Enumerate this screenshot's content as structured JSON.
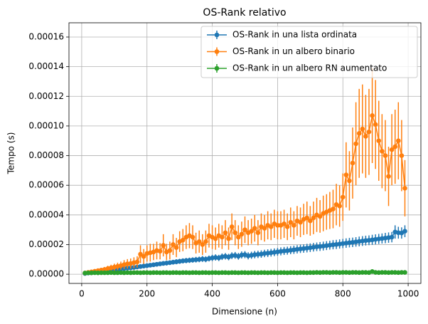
{
  "chart_data": {
    "type": "errorbar",
    "title": "OS-Rank relativo",
    "xlabel": "Dimensione (n)",
    "ylabel": "Tempo (s)",
    "xlim": [
      -39,
      1039
    ],
    "ylim": [
      -6.2e-06,
      0.0001696
    ],
    "xticks": [
      0,
      200,
      400,
      600,
      800,
      1000
    ],
    "yticks": [
      {
        "value": 0,
        "label": "0.00000"
      },
      {
        "value": 2e-05,
        "label": "0.00002"
      },
      {
        "value": 4e-05,
        "label": "0.00004"
      },
      {
        "value": 6e-05,
        "label": "0.00006"
      },
      {
        "value": 8e-05,
        "label": "0.00008"
      },
      {
        "value": 0.0001,
        "label": "0.00010"
      },
      {
        "value": 0.00012,
        "label": "0.00012"
      },
      {
        "value": 0.00014,
        "label": "0.00014"
      },
      {
        "value": 0.00016,
        "label": "0.00016"
      }
    ],
    "grid": true,
    "legend": "upper right",
    "x": [
      10,
      20,
      30,
      40,
      50,
      60,
      70,
      80,
      90,
      100,
      110,
      120,
      130,
      140,
      150,
      160,
      170,
      180,
      190,
      200,
      210,
      220,
      230,
      240,
      250,
      260,
      270,
      280,
      290,
      300,
      310,
      320,
      330,
      340,
      350,
      360,
      370,
      380,
      390,
      400,
      410,
      420,
      430,
      440,
      450,
      460,
      470,
      480,
      490,
      500,
      510,
      520,
      530,
      540,
      550,
      560,
      570,
      580,
      590,
      600,
      610,
      620,
      630,
      640,
      650,
      660,
      670,
      680,
      690,
      700,
      710,
      720,
      730,
      740,
      750,
      760,
      770,
      780,
      790,
      800,
      810,
      820,
      830,
      840,
      850,
      860,
      870,
      880,
      890,
      900,
      910,
      920,
      930,
      940,
      950,
      960,
      970,
      980,
      990
    ],
    "series": [
      {
        "name": "OS-Rank in una lista ordinata",
        "color": "#1f77b4",
        "values": [
          5e-07,
          8e-07,
          1e-06,
          1.3e-06,
          1.5e-06,
          1.8e-06,
          2e-06,
          2.3e-06,
          2.6e-06,
          2.9e-06,
          3.2e-06,
          3.5e-06,
          3.8e-06,
          4.1e-06,
          4.3e-06,
          4.6e-06,
          4.9e-06,
          5.2e-06,
          5.5e-06,
          5.8e-06,
          6.1e-06,
          6.4e-06,
          6.7e-06,
          7e-06,
          7.3e-06,
          7.5e-06,
          7.8e-06,
          8.1e-06,
          8.4e-06,
          8.7e-06,
          9e-06,
          9.2e-06,
          9.4e-06,
          9.6e-06,
          9.8e-06,
          1e-05,
          1.03e-05,
          1.01e-05,
          1.06e-05,
          1.1e-05,
          1.13e-05,
          1.1e-05,
          1.18e-05,
          1.21e-05,
          1.16e-05,
          1.25e-05,
          1.27e-05,
          1.21e-05,
          1.3e-05,
          1.32e-05,
          1.24e-05,
          1.28e-05,
          1.32e-05,
          1.34e-05,
          1.36e-05,
          1.4e-05,
          1.42e-05,
          1.45e-05,
          1.48e-05,
          1.51e-05,
          1.54e-05,
          1.57e-05,
          1.59e-05,
          1.62e-05,
          1.65e-05,
          1.68e-05,
          1.71e-05,
          1.73e-05,
          1.76e-05,
          1.79e-05,
          1.82e-05,
          1.85e-05,
          1.87e-05,
          1.9e-05,
          1.93e-05,
          1.96e-05,
          1.99e-05,
          2.01e-05,
          2.04e-05,
          2.07e-05,
          2.1e-05,
          2.13e-05,
          2.15e-05,
          2.18e-05,
          2.21e-05,
          2.24e-05,
          2.27e-05,
          2.29e-05,
          2.32e-05,
          2.35e-05,
          2.38e-05,
          2.41e-05,
          2.44e-05,
          2.47e-05,
          2.5e-05,
          2.85e-05,
          2.8e-05,
          2.78e-05,
          2.9e-05
        ],
        "errors": [
          3e-07,
          4e-07,
          5e-07,
          5e-07,
          6e-07,
          6e-07,
          7e-07,
          7e-07,
          8e-07,
          8e-07,
          9e-07,
          9e-07,
          1e-06,
          1e-06,
          1.1e-06,
          1.1e-06,
          1.2e-06,
          1.2e-06,
          1.3e-06,
          1.3e-06,
          1.4e-06,
          1.4e-06,
          1.5e-06,
          1.5e-06,
          1.5e-06,
          1.6e-06,
          1.6e-06,
          1.6e-06,
          1.7e-06,
          1.7e-06,
          1.7e-06,
          1.8e-06,
          1.8e-06,
          1.8e-06,
          1.9e-06,
          1.9e-06,
          2e-06,
          2e-06,
          2e-06,
          2.1e-06,
          2.1e-06,
          2.1e-06,
          2.2e-06,
          2.2e-06,
          2.2e-06,
          2.3e-06,
          2.3e-06,
          2.3e-06,
          2.4e-06,
          2.4e-06,
          2.4e-06,
          2.4e-06,
          2.5e-06,
          2.5e-06,
          2.5e-06,
          2.5e-06,
          2.6e-06,
          2.6e-06,
          2.6e-06,
          2.6e-06,
          2.7e-06,
          2.7e-06,
          2.7e-06,
          2.7e-06,
          2.8e-06,
          2.8e-06,
          2.8e-06,
          2.8e-06,
          2.9e-06,
          2.9e-06,
          2.9e-06,
          2.9e-06,
          3e-06,
          3e-06,
          3e-06,
          3e-06,
          3.1e-06,
          3.1e-06,
          3.1e-06,
          3.1e-06,
          3.2e-06,
          3.2e-06,
          3.2e-06,
          3.2e-06,
          3.3e-06,
          3.3e-06,
          3.3e-06,
          3.3e-06,
          3.4e-06,
          3.4e-06,
          3.4e-06,
          3.4e-06,
          3.5e-06,
          3.5e-06,
          3.5e-06,
          4.5e-06,
          4e-06,
          3.8e-06,
          4e-06
        ]
      },
      {
        "name": "OS-Rank in un albero binario",
        "color": "#ff7f0e",
        "values": [
          8e-07,
          1.2e-06,
          1.6e-06,
          2e-06,
          2.4e-06,
          2.8e-06,
          3.2e-06,
          3.8e-06,
          4.3e-06,
          4.8e-06,
          5.3e-06,
          5.8e-06,
          6.5e-06,
          7e-06,
          7.2e-06,
          7.8e-06,
          8.3e-06,
          1.35e-05,
          1.2e-05,
          1.4e-05,
          1.45e-05,
          1.5e-05,
          1.6e-05,
          1.55e-05,
          1.95e-05,
          1.5e-05,
          1.6e-05,
          2e-05,
          1.8e-05,
          2.2e-05,
          2.3e-05,
          2.5e-05,
          2.6e-05,
          2.5e-05,
          2.1e-05,
          2.2e-05,
          2e-05,
          2.2e-05,
          2.6e-05,
          2.5e-05,
          2.4e-05,
          2.6e-05,
          2.5e-05,
          2.8e-05,
          2.4e-05,
          3.2e-05,
          2.8e-05,
          2.5e-05,
          2.7e-05,
          3e-05,
          2.8e-05,
          2.9e-05,
          3.1e-05,
          2.8e-05,
          3.2e-05,
          3.1e-05,
          3.3e-05,
          3.2e-05,
          3.4e-05,
          3.3e-05,
          3.3e-05,
          3.4e-05,
          3.2e-05,
          3.5e-05,
          3.3e-05,
          3.6e-05,
          3.5e-05,
          3.7e-05,
          3.8e-05,
          3.6e-05,
          3.8e-05,
          4e-05,
          3.9e-05,
          4.1e-05,
          4.2e-05,
          4.3e-05,
          4.4e-05,
          4.7e-05,
          4.6e-05,
          5.2e-05,
          6.7e-05,
          6.3e-05,
          7.5e-05,
          8.8e-05,
          9.5e-05,
          9.8e-05,
          9.3e-05,
          9.6e-05,
          0.000107,
          0.000101,
          9e-05,
          8.3e-05,
          8e-05,
          6.6e-05,
          8.4e-05,
          8.6e-05,
          9e-05,
          8e-05,
          5.8e-05
        ],
        "errors": [
          5e-07,
          7e-07,
          9e-07,
          1.1e-06,
          1.3e-06,
          1.5e-06,
          1.7e-06,
          1.9e-06,
          2.1e-06,
          2.3e-06,
          2.5e-06,
          2.7e-06,
          3e-06,
          3.2e-06,
          3.4e-06,
          3.6e-06,
          3.8e-06,
          6e-06,
          5e-06,
          5.5e-06,
          6e-06,
          5.5e-06,
          6e-06,
          5.5e-06,
          7.5e-06,
          5.5e-06,
          6e-06,
          7e-06,
          6.5e-06,
          7e-06,
          7.5e-06,
          8e-06,
          8.5e-06,
          8e-06,
          7e-06,
          7.5e-06,
          7e-06,
          7.5e-06,
          8e-06,
          8e-06,
          7.5e-06,
          8e-06,
          8e-06,
          8.5e-06,
          7.5e-06,
          9e-06,
          8.5e-06,
          8e-06,
          8.5e-06,
          9e-06,
          8.5e-06,
          8.5e-06,
          9e-06,
          8.5e-06,
          9e-06,
          9e-06,
          9.5e-06,
          9e-06,
          9.5e-06,
          9.5e-06,
          9.5e-06,
          9.5e-06,
          9e-06,
          1e-05,
          9.5e-06,
          1e-05,
          1e-05,
          1.05e-05,
          1.1e-05,
          1e-05,
          1.1e-05,
          1.15e-05,
          1.1e-05,
          1.2e-05,
          1.2e-05,
          1.25e-05,
          1.3e-05,
          1.4e-05,
          1.4e-05,
          1.6e-05,
          2.2e-05,
          2e-05,
          2.4e-05,
          2.8e-05,
          3e-05,
          3e-05,
          2.8e-05,
          2.9e-05,
          3.2e-05,
          3e-05,
          2.7e-05,
          2.5e-05,
          2.4e-05,
          2e-05,
          2.4e-05,
          2.5e-05,
          2.6e-05,
          2.4e-05,
          1.9e-05
        ]
      },
      {
        "name": "OS-Rank in un albero RN aumentato",
        "color": "#2ca02c",
        "values": [
          8e-07,
          9e-07,
          9e-07,
          1e-06,
          9e-07,
          1e-06,
          1e-06,
          1e-06,
          1.1e-06,
          1e-06,
          1e-06,
          1.1e-06,
          1e-06,
          1.1e-06,
          1e-06,
          1.1e-06,
          1.1e-06,
          1e-06,
          1.1e-06,
          1.1e-06,
          1e-06,
          1.1e-06,
          1.1e-06,
          1e-06,
          1.1e-06,
          1.1e-06,
          1e-06,
          1.1e-06,
          1.1e-06,
          1e-06,
          1.1e-06,
          1.1e-06,
          1e-06,
          1.1e-06,
          1.1e-06,
          1e-06,
          1.1e-06,
          1.1e-06,
          1e-06,
          1.1e-06,
          1.1e-06,
          1e-06,
          1.1e-06,
          1.1e-06,
          1e-06,
          1.1e-06,
          1.1e-06,
          1e-06,
          1.1e-06,
          1.1e-06,
          1e-06,
          1.1e-06,
          1.1e-06,
          1e-06,
          1.1e-06,
          1.1e-06,
          1e-06,
          1.1e-06,
          1.1e-06,
          1e-06,
          1.1e-06,
          1.1e-06,
          1e-06,
          1.1e-06,
          1.1e-06,
          1e-06,
          1.1e-06,
          1.1e-06,
          1e-06,
          1.1e-06,
          1.1e-06,
          1.2e-06,
          1.1e-06,
          1.2e-06,
          1.2e-06,
          1.1e-06,
          1.2e-06,
          1.2e-06,
          1.1e-06,
          1.2e-06,
          1.2e-06,
          1.1e-06,
          1.2e-06,
          1.2e-06,
          1.1e-06,
          1.2e-06,
          1.2e-06,
          1.1e-06,
          1.8e-06,
          1.2e-06,
          1.1e-06,
          1.2e-06,
          1.2e-06,
          1.1e-06,
          1.2e-06,
          1.2e-06,
          1.1e-06,
          1.2e-06,
          1.2e-06
        ],
        "errors": [
          2e-07,
          2e-07,
          2e-07,
          2e-07,
          2e-07,
          2e-07,
          2e-07,
          2e-07,
          2e-07,
          2e-07,
          2e-07,
          2e-07,
          2e-07,
          2e-07,
          2e-07,
          2e-07,
          2e-07,
          2e-07,
          2e-07,
          2e-07,
          2e-07,
          2e-07,
          2e-07,
          2e-07,
          2e-07,
          2e-07,
          2e-07,
          2e-07,
          2e-07,
          2e-07,
          2e-07,
          2e-07,
          2e-07,
          2e-07,
          2e-07,
          2e-07,
          2e-07,
          2e-07,
          2e-07,
          2e-07,
          2e-07,
          2e-07,
          2e-07,
          2e-07,
          2e-07,
          2e-07,
          2e-07,
          2e-07,
          2e-07,
          2e-07,
          2e-07,
          2e-07,
          2e-07,
          2e-07,
          2e-07,
          2e-07,
          2e-07,
          2e-07,
          2e-07,
          2e-07,
          2e-07,
          2e-07,
          2e-07,
          2e-07,
          2e-07,
          2e-07,
          2e-07,
          2e-07,
          2e-07,
          2e-07,
          2e-07,
          2e-07,
          2e-07,
          2e-07,
          2e-07,
          2e-07,
          2e-07,
          2e-07,
          2e-07,
          2e-07,
          2e-07,
          2e-07,
          2e-07,
          2e-07,
          2e-07,
          2e-07,
          2e-07,
          2e-07,
          5e-07,
          2e-07,
          2e-07,
          2e-07,
          2e-07,
          2e-07,
          2e-07,
          2e-07,
          2e-07,
          2e-07,
          2e-07
        ]
      }
    ]
  }
}
